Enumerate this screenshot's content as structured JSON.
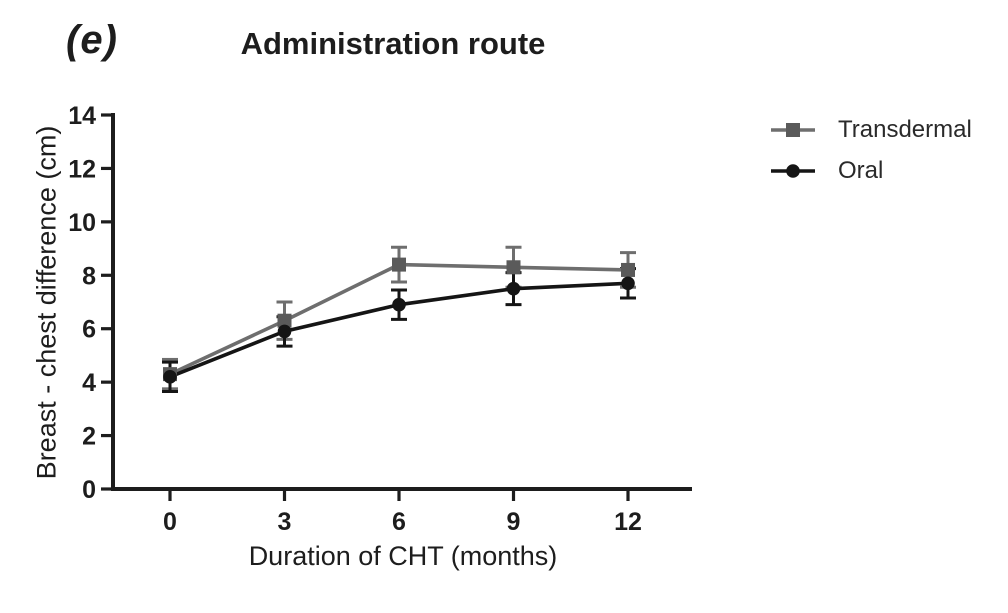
{
  "panel_label": "(e)",
  "title": "Administration route",
  "colors": {
    "axis": "#1d1d1d",
    "text": "#1d1d1d",
    "transdermal": "#6e6e6e",
    "transdermal_marker": "#5a5a5a",
    "oral": "#151515"
  },
  "chart_data": {
    "type": "line",
    "title": "Administration route",
    "xlabel": "Duration of CHT (months)",
    "ylabel": "Breast - chest difference (cm)",
    "x": [
      0,
      3,
      6,
      9,
      12
    ],
    "xticks": [
      0,
      3,
      6,
      9,
      12
    ],
    "yticks": [
      0,
      2,
      4,
      6,
      8,
      10,
      12,
      14
    ],
    "ylim": [
      0,
      14
    ],
    "xlim": [
      -1.5,
      13.7
    ],
    "grid": false,
    "legend_position": "right",
    "series": [
      {
        "name": "Transdermal",
        "marker": "square",
        "color": "#6e6e6e",
        "marker_color": "#5a5a5a",
        "values": [
          4.3,
          6.3,
          8.4,
          8.3,
          8.2
        ],
        "errors": [
          0.55,
          0.7,
          0.65,
          0.75,
          0.65
        ]
      },
      {
        "name": "Oral",
        "marker": "circle",
        "color": "#151515",
        "marker_color": "#151515",
        "values": [
          4.2,
          5.9,
          6.9,
          7.5,
          7.7
        ],
        "errors": [
          0.55,
          0.55,
          0.55,
          0.6,
          0.55
        ]
      }
    ]
  }
}
